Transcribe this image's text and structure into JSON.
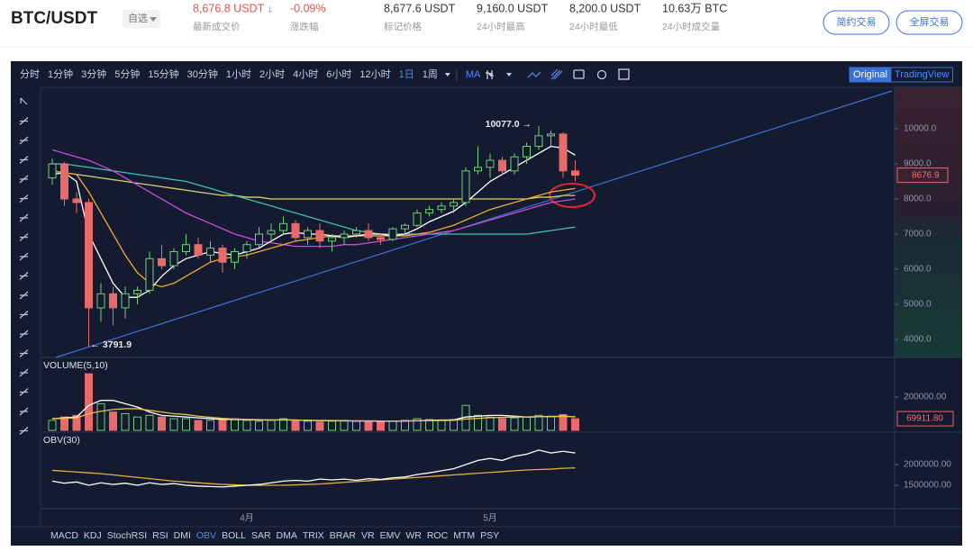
{
  "header": {
    "symbol": "BTC/USDT",
    "watch": "自选",
    "stats": [
      {
        "value": "8,676.8 USDT ↓",
        "label": "最新成交价",
        "color": "#e5534b"
      },
      {
        "value": "-0.09%",
        "label": "涨跌幅",
        "color": "#e5534b"
      },
      {
        "value": "8,677.6 USDT",
        "label": "标记价格",
        "color": "#333333"
      },
      {
        "value": "9,160.0 USDT",
        "label": "24小时最高",
        "color": "#333333"
      },
      {
        "value": "8,200.0 USDT",
        "label": "24小时最低",
        "color": "#333333"
      },
      {
        "value": "10.63万 BTC",
        "label": "24小时成交量",
        "color": "#333333"
      }
    ],
    "buttons": [
      "简约交易",
      "全屏交易"
    ]
  },
  "toolbar": {
    "intervals": [
      "分时",
      "1分钟",
      "3分钟",
      "5分钟",
      "15分钟",
      "30分钟",
      "1小时",
      "2小时",
      "4小时",
      "6小时",
      "12小时",
      "1日",
      "1周"
    ],
    "active": "1日",
    "study": "MA",
    "views": [
      "Original",
      "TradingView"
    ],
    "active_view": "Original"
  },
  "indicator_tabs": {
    "items": [
      "MACD",
      "KDJ",
      "StochRSI",
      "RSI",
      "DMI",
      "OBV",
      "BOLL",
      "SAR",
      "DMA",
      "TRIX",
      "BRAR",
      "VR",
      "EMV",
      "WR",
      "ROC",
      "MTM",
      "PSY"
    ],
    "active": "OBV"
  },
  "chart_data": {
    "type": "candlestick",
    "up_color": "#6fcf73",
    "down_color": "#e96a6a",
    "categories": [
      null,
      null,
      null,
      null,
      null,
      null,
      null,
      null,
      null,
      null,
      null,
      null,
      null,
      null,
      null,
      null,
      "4月",
      null,
      null,
      null,
      null,
      null,
      null,
      null,
      null,
      null,
      null,
      null,
      null,
      null,
      null,
      null,
      null,
      null,
      null,
      null,
      "5月",
      null,
      null,
      null,
      null,
      null,
      null,
      null
    ],
    "ohlc": [
      [
        8600,
        9150,
        8400,
        9000
      ],
      [
        9000,
        9050,
        7800,
        8000
      ],
      [
        8000,
        8200,
        7600,
        7900
      ],
      [
        7900,
        8000,
        3791.9,
        4900
      ],
      [
        4900,
        5600,
        4500,
        5300
      ],
      [
        5300,
        5500,
        4400,
        4900
      ],
      [
        4900,
        5500,
        4600,
        5300
      ],
      [
        5300,
        5500,
        5000,
        5400
      ],
      [
        5400,
        6500,
        5300,
        6300
      ],
      [
        6300,
        6700,
        6000,
        6100
      ],
      [
        6100,
        6600,
        6000,
        6500
      ],
      [
        6500,
        7000,
        6400,
        6700
      ],
      [
        6700,
        6900,
        6300,
        6400
      ],
      [
        6400,
        6800,
        6200,
        6600
      ],
      [
        6600,
        6700,
        5900,
        6200
      ],
      [
        6200,
        6600,
        6000,
        6500
      ],
      [
        6500,
        6800,
        6300,
        6700
      ],
      [
        6700,
        7200,
        6600,
        7000
      ],
      [
        7000,
        7300,
        6800,
        7100
      ],
      [
        7100,
        7500,
        7000,
        7300
      ],
      [
        7300,
        7400,
        6800,
        6900
      ],
      [
        6900,
        7200,
        6700,
        7100
      ],
      [
        7100,
        7300,
        6600,
        6800
      ],
      [
        6800,
        7000,
        6500,
        6900
      ],
      [
        6900,
        7100,
        6700,
        7000
      ],
      [
        7000,
        7200,
        6900,
        7100
      ],
      [
        7100,
        7300,
        6800,
        6900
      ],
      [
        6900,
        7000,
        6700,
        6850
      ],
      [
        6850,
        7200,
        6800,
        7150
      ],
      [
        7150,
        7300,
        7000,
        7250
      ],
      [
        7250,
        7700,
        7200,
        7600
      ],
      [
        7600,
        7800,
        7500,
        7700
      ],
      [
        7700,
        7900,
        7600,
        7800
      ],
      [
        7800,
        8000,
        7600,
        7900
      ],
      [
        7900,
        8900,
        7800,
        8800
      ],
      [
        8800,
        9500,
        8700,
        8900
      ],
      [
        8900,
        9300,
        8600,
        9100
      ],
      [
        9100,
        9200,
        8700,
        8800
      ],
      [
        8800,
        9300,
        8700,
        9200
      ],
      [
        9200,
        9600,
        9000,
        9500
      ],
      [
        9500,
        10077,
        9400,
        9800
      ],
      [
        9800,
        9950,
        9500,
        9850
      ],
      [
        9850,
        9900,
        8600,
        8800
      ],
      [
        8800,
        9100,
        8500,
        8676.9
      ]
    ],
    "ylim": [
      3487,
      11180
    ],
    "yticks": [
      {
        "value": 10000,
        "label": "10000.0"
      },
      {
        "value": 9000,
        "label": "9000.0"
      },
      {
        "value": 8000,
        "label": "8000.0"
      },
      {
        "value": 7000,
        "label": "7000.0"
      },
      {
        "value": 6000,
        "label": "6000.0"
      },
      {
        "value": 5000,
        "label": "5000.0"
      },
      {
        "value": 4000,
        "label": "4000.0"
      }
    ],
    "high_label": "10077.0 →",
    "low_label": "← 3791.9",
    "last_label": "8676.9",
    "ma": [
      {
        "color": "#ffffff",
        "values": [
          8700,
          8750,
          8500,
          7000,
          6300,
          5600,
          5200,
          5200,
          5400,
          5800,
          6100,
          6300,
          6400,
          6500,
          6450,
          6400,
          6500,
          6600,
          6800,
          7000,
          7050,
          7000,
          7000,
          6950,
          6900,
          6950,
          7000,
          7000,
          6950,
          7000,
          7150,
          7350,
          7500,
          7650,
          7900,
          8200,
          8500,
          8700,
          8900,
          9100,
          9300,
          9500,
          9450,
          9250
        ]
      },
      {
        "color": "#f0a830",
        "values": [
          8800,
          8750,
          8700,
          8200,
          7600,
          7000,
          6400,
          5900,
          5600,
          5500,
          5600,
          5800,
          6000,
          6200,
          6300,
          6350,
          6400,
          6500,
          6600,
          6700,
          6800,
          6850,
          6900,
          6950,
          6950,
          6950,
          6950,
          6950,
          6950,
          6950,
          7000,
          7050,
          7150,
          7250,
          7400,
          7550,
          7700,
          7800,
          7900,
          8000,
          8100,
          8200,
          8250,
          8300
        ]
      },
      {
        "color": "#c64fd6",
        "values": [
          9400,
          9300,
          9200,
          9100,
          8950,
          8800,
          8600,
          8400,
          8200,
          8000,
          7800,
          7600,
          7450,
          7300,
          7150,
          7000,
          6900,
          6800,
          6750,
          6700,
          6650,
          6650,
          6650,
          6650,
          6700,
          6700,
          6750,
          6800,
          6850,
          6900,
          6950,
          7000,
          7050,
          7100,
          7200,
          7300,
          7400,
          7500,
          7600,
          7700,
          7800,
          7900,
          7950,
          8000
        ]
      },
      {
        "color": "#3fbfb0",
        "values": [
          9000,
          9000,
          8950,
          8900,
          8850,
          8800,
          8750,
          8700,
          8650,
          8600,
          8550,
          8500,
          8400,
          8300,
          8200,
          8100,
          8000,
          7900,
          7800,
          7700,
          7600,
          7500,
          7400,
          7300,
          7200,
          7100,
          7050,
          7000,
          7000,
          7000,
          7000,
          7000,
          7000,
          7000,
          7000,
          7000,
          7000,
          7000,
          7000,
          7000,
          7050,
          7100,
          7150,
          7200
        ]
      },
      {
        "color": "#d8d36a",
        "values": [
          8800,
          8750,
          8700,
          8650,
          8600,
          8550,
          8500,
          8450,
          8400,
          8350,
          8300,
          8250,
          8200,
          8150,
          8100,
          8100,
          8050,
          8050,
          8000,
          8000,
          8000,
          8000,
          8000,
          8000,
          8000,
          8000,
          8000,
          8000,
          8000,
          8000,
          8000,
          8000,
          8000,
          8000,
          8000,
          8000,
          8000,
          8000,
          8000,
          8000,
          8050,
          8050,
          8100,
          8100
        ]
      }
    ],
    "volume": {
      "title": "VOLUME(5,10)",
      "ylim": [
        0,
        421600
      ],
      "yticks": [
        {
          "value": 200000,
          "label": "200000.00"
        }
      ],
      "last_label": "69911.80",
      "values": [
        60000,
        80000,
        90000,
        340000,
        160000,
        110000,
        100000,
        80000,
        90000,
        80000,
        70000,
        70000,
        60000,
        60000,
        65000,
        70000,
        60000,
        55000,
        60000,
        70000,
        60000,
        55000,
        50000,
        55000,
        60000,
        55000,
        55000,
        50000,
        55000,
        60000,
        70000,
        65000,
        60000,
        65000,
        150000,
        90000,
        80000,
        70000,
        75000,
        80000,
        90000,
        85000,
        95000,
        69911.8
      ],
      "ma": [
        {
          "color": "#ffffff",
          "values": [
            70000,
            75000,
            80000,
            150000,
            180000,
            180000,
            160000,
            140000,
            110000,
            90000,
            85000,
            80000,
            75000,
            70000,
            66000,
            65000,
            64000,
            62000,
            62000,
            63000,
            62000,
            60000,
            58000,
            58000,
            57000,
            56000,
            56000,
            55000,
            55000,
            56000,
            58000,
            60000,
            62000,
            63000,
            80000,
            85000,
            90000,
            90000,
            85000,
            80000,
            82000,
            83000,
            85000,
            82000
          ]
        },
        {
          "color": "#e3c04a",
          "values": [
            70000,
            72000,
            75000,
            100000,
            115000,
            125000,
            130000,
            130000,
            120000,
            110000,
            100000,
            95000,
            85000,
            78000,
            72000,
            68000,
            66000,
            64000,
            63000,
            63000,
            62000,
            61000,
            60000,
            59000,
            58000,
            57000,
            57000,
            56000,
            56000,
            56000,
            57000,
            58000,
            59000,
            60000,
            68000,
            72000,
            76000,
            78000,
            80000,
            80000,
            82000,
            82000,
            83000,
            83000
          ]
        }
      ]
    },
    "obv": {
      "title": "OBV(30)",
      "ylim": [
        935000,
        2739000
      ],
      "yticks": [
        {
          "value": 2000000,
          "label": "2000000.00"
        },
        {
          "value": 1500000,
          "label": "1500000.00"
        }
      ],
      "lines": [
        {
          "color": "#ffffff",
          "values": [
            1600000,
            1550000,
            1580000,
            1500000,
            1560000,
            1520000,
            1550000,
            1500000,
            1560000,
            1520000,
            1540000,
            1500000,
            1480000,
            1470000,
            1460000,
            1480000,
            1500000,
            1520000,
            1560000,
            1600000,
            1620000,
            1600000,
            1650000,
            1630000,
            1650000,
            1620000,
            1660000,
            1640000,
            1680000,
            1700000,
            1760000,
            1800000,
            1850000,
            1900000,
            2000000,
            2100000,
            2150000,
            2100000,
            2200000,
            2250000,
            2350000,
            2280000,
            2320000,
            2280000
          ]
        },
        {
          "color": "#e3b13a",
          "values": [
            1860000,
            1840000,
            1820000,
            1800000,
            1780000,
            1750000,
            1720000,
            1690000,
            1660000,
            1630000,
            1600000,
            1580000,
            1560000,
            1540000,
            1520000,
            1510000,
            1500000,
            1500000,
            1500000,
            1500000,
            1510000,
            1520000,
            1530000,
            1550000,
            1570000,
            1590000,
            1610000,
            1630000,
            1650000,
            1670000,
            1690000,
            1710000,
            1730000,
            1750000,
            1770000,
            1790000,
            1810000,
            1830000,
            1850000,
            1870000,
            1880000,
            1890000,
            1910000,
            1920000
          ]
        }
      ]
    }
  }
}
